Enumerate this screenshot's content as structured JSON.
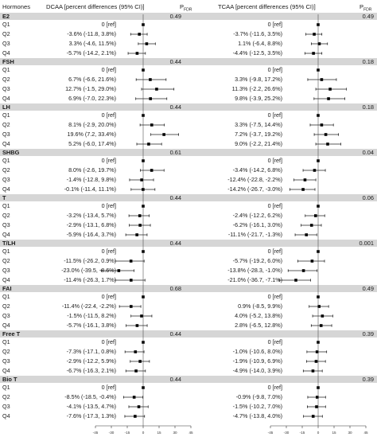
{
  "header": {
    "col_hormones": "Hormones",
    "col_dcaa": "DCAA [percent differences (95% CI)]",
    "col_p1": "P",
    "col_p1_sub": "FDR",
    "col_tcaa": "TCAA [percent differences (95% CI)]",
    "col_p2": "P",
    "col_p2_sub": "FDR"
  },
  "chart_data": {
    "type": "forest",
    "x_axis_dcaa": {
      "ticks": [
        "-45",
        "-30",
        "-15",
        "0",
        "15",
        "30",
        "45"
      ],
      "xlim": [
        -45,
        45
      ]
    },
    "x_axis_tcaa": {
      "ticks": [
        "-45",
        "-30",
        "-15",
        "0",
        "15",
        "30",
        "45"
      ],
      "xlim": [
        -45,
        45
      ]
    },
    "groups": [
      {
        "name": "E2",
        "p_dcaa": "0.49",
        "p_tcaa": "0.49",
        "rows": [
          {
            "q": "Q1",
            "dcaa_text": "0 [ref]",
            "dcaa": [
              0,
              null,
              null
            ],
            "tcaa_text": "0 [ref]",
            "tcaa": [
              0,
              null,
              null
            ]
          },
          {
            "q": "Q2",
            "dcaa_text": "-3.6% (-11.8, 3.8%)",
            "dcaa": [
              -3.6,
              -11.8,
              3.8
            ],
            "tcaa_text": "-3.7% (-11.6, 3.5%)",
            "tcaa": [
              -3.7,
              -11.6,
              3.5
            ]
          },
          {
            "q": "Q3",
            "dcaa_text": "3.3% (-4.6, 11.5%)",
            "dcaa": [
              3.3,
              -4.6,
              11.5
            ],
            "tcaa_text": "1.1% (-6.4, 8.8%)",
            "tcaa": [
              1.1,
              -6.4,
              8.8
            ]
          },
          {
            "q": "Q4",
            "dcaa_text": "-5.7% (-14.2, 2.1%)",
            "dcaa": [
              -5.7,
              -14.2,
              2.1
            ],
            "tcaa_text": "-4.4% (-12.5, 3.5%)",
            "tcaa": [
              -4.4,
              -12.5,
              3.5
            ]
          }
        ]
      },
      {
        "name": "FSH",
        "p_dcaa": "0.44",
        "p_tcaa": "0.18",
        "rows": [
          {
            "q": "Q1",
            "dcaa_text": "0 [ref]",
            "dcaa": [
              0,
              null,
              null
            ],
            "tcaa_text": "0 [ref]",
            "tcaa": [
              0,
              null,
              null
            ]
          },
          {
            "q": "Q2",
            "dcaa_text": "6.7% (-6.6, 21.6%)",
            "dcaa": [
              6.7,
              -6.6,
              21.6
            ],
            "tcaa_text": "3.3% (-9.8, 17.2%)",
            "tcaa": [
              3.3,
              -9.8,
              17.2
            ]
          },
          {
            "q": "Q3",
            "dcaa_text": "12.7% (-1.5, 29.0%)",
            "dcaa": [
              12.7,
              -1.5,
              29.0
            ],
            "tcaa_text": "11.3% (-2.2, 26.6%)",
            "tcaa": [
              11.3,
              -2.2,
              26.6
            ]
          },
          {
            "q": "Q4",
            "dcaa_text": "6.9% (-7.0, 22.3%)",
            "dcaa": [
              6.9,
              -7.0,
              22.3
            ],
            "tcaa_text": "9.8% (-3.9, 25.2%)",
            "tcaa": [
              9.8,
              -3.9,
              25.2
            ]
          }
        ]
      },
      {
        "name": "LH",
        "p_dcaa": "0.44",
        "p_tcaa": "0.18",
        "rows": [
          {
            "q": "Q1",
            "dcaa_text": "0 [ref]",
            "dcaa": [
              0,
              null,
              null
            ],
            "tcaa_text": "0 [ref]",
            "tcaa": [
              0,
              null,
              null
            ]
          },
          {
            "q": "Q2",
            "dcaa_text": "8.1% (-2.9, 20.0%)",
            "dcaa": [
              8.1,
              -2.9,
              20.0
            ],
            "tcaa_text": "3.3% (-7.5, 14.4%)",
            "tcaa": [
              3.3,
              -7.5,
              14.4
            ]
          },
          {
            "q": "Q3",
            "dcaa_text": "19.6% (7.2, 33.4%)",
            "dcaa": [
              19.6,
              7.2,
              33.4
            ],
            "tcaa_text": "7.2% (-3.7, 19.2%)",
            "tcaa": [
              7.2,
              -3.7,
              19.2
            ]
          },
          {
            "q": "Q4",
            "dcaa_text": "5.2% (-6.0, 17.4%)",
            "dcaa": [
              5.2,
              -6.0,
              17.4
            ],
            "tcaa_text": "9.0% (-2.2, 21.4%)",
            "tcaa": [
              9.0,
              -2.2,
              21.4
            ]
          }
        ]
      },
      {
        "name": "SHBG",
        "p_dcaa": "0.61",
        "p_tcaa": "0.04",
        "rows": [
          {
            "q": "Q1",
            "dcaa_text": "0 [ref]",
            "dcaa": [
              0,
              null,
              null
            ],
            "tcaa_text": "0 [ref]",
            "tcaa": [
              0,
              null,
              null
            ]
          },
          {
            "q": "Q2",
            "dcaa_text": "8.0% (-2.6, 19.7%)",
            "dcaa": [
              8.0,
              -2.6,
              19.7
            ],
            "tcaa_text": "-3.4% (-14.2, 6.8%)",
            "tcaa": [
              -3.4,
              -14.2,
              6.8
            ]
          },
          {
            "q": "Q3",
            "dcaa_text": "-1.4% (-12.8, 9.8%)",
            "dcaa": [
              -1.4,
              -12.8,
              9.8
            ],
            "tcaa_text": "-12.4% (-22.8, -2.2%)",
            "tcaa": [
              -12.4,
              -22.8,
              -2.2
            ]
          },
          {
            "q": "Q4",
            "dcaa_text": "-0.1% (-11.4, 11.1%)",
            "dcaa": [
              -0.1,
              -11.4,
              11.1
            ],
            "tcaa_text": "-14.2% (-26.7, -3.0%)",
            "tcaa": [
              -14.2,
              -26.7,
              -3.0
            ]
          }
        ]
      },
      {
        "name": "T",
        "p_dcaa": "0.44",
        "p_tcaa": "0.06",
        "rows": [
          {
            "q": "Q1",
            "dcaa_text": "0 [ref]",
            "dcaa": [
              0,
              null,
              null
            ],
            "tcaa_text": "0 [ref]",
            "tcaa": [
              0,
              null,
              null
            ]
          },
          {
            "q": "Q2",
            "dcaa_text": "-3.2% (-13.4, 5.7%)",
            "dcaa": [
              -3.2,
              -13.4,
              5.7
            ],
            "tcaa_text": "-2.4% (-12.2, 6.2%)",
            "tcaa": [
              -2.4,
              -12.2,
              6.2
            ]
          },
          {
            "q": "Q3",
            "dcaa_text": "-2.9% (-13.1, 6.8%)",
            "dcaa": [
              -2.9,
              -13.1,
              6.8
            ],
            "tcaa_text": "-6.2% (-16.1, 3.0%)",
            "tcaa": [
              -6.2,
              -16.1,
              3.0
            ]
          },
          {
            "q": "Q4",
            "dcaa_text": "-5.9% (-16.4, 3.7%)",
            "dcaa": [
              -5.9,
              -16.4,
              3.7
            ],
            "tcaa_text": "-11.1% (-21.7, -1.3%)",
            "tcaa": [
              -11.1,
              -21.7,
              -1.3
            ]
          }
        ]
      },
      {
        "name": "T/LH",
        "p_dcaa": "0.44",
        "p_tcaa": "0.001",
        "rows": [
          {
            "q": "Q1",
            "dcaa_text": "0 [ref]",
            "dcaa": [
              0,
              null,
              null
            ],
            "tcaa_text": "0 [ref]",
            "tcaa": [
              0,
              null,
              null
            ]
          },
          {
            "q": "Q2",
            "dcaa_text": "-11.5% (-26.2, 0.9%)",
            "dcaa": [
              -11.5,
              -26.2,
              0.9
            ],
            "tcaa_text": "-5.7% (-19.2, 6.0%)",
            "tcaa": [
              -5.7,
              -19.2,
              6.0
            ]
          },
          {
            "q": "Q3",
            "dcaa_text": "-23.0% (-39.5, -8.6%)",
            "dcaa": [
              -23.0,
              -39.5,
              -8.6
            ],
            "tcaa_text": "-13.8% (-28.3, -1.0%)",
            "tcaa": [
              -13.8,
              -28.3,
              -1.0
            ]
          },
          {
            "q": "Q4",
            "dcaa_text": "-11.4% (-26.3, 1.7%)",
            "dcaa": [
              -11.4,
              -26.3,
              1.7
            ],
            "tcaa_text": "-21.0% (-36.7, -7.1%)",
            "tcaa": [
              -21.0,
              -36.7,
              -7.1
            ]
          }
        ]
      },
      {
        "name": "FAI",
        "p_dcaa": "0.68",
        "p_tcaa": "0.49",
        "rows": [
          {
            "q": "Q1",
            "dcaa_text": "0 [ref]",
            "dcaa": [
              0,
              null,
              null
            ],
            "tcaa_text": "0 [ref]",
            "tcaa": [
              0,
              null,
              null
            ]
          },
          {
            "q": "Q2",
            "dcaa_text": "-11.4% (-22.4, -2.2%)",
            "dcaa": [
              -11.4,
              -22.4,
              -2.2
            ],
            "tcaa_text": "0.9% (-8.5, 9.9%)",
            "tcaa": [
              0.9,
              -8.5,
              9.9
            ]
          },
          {
            "q": "Q3",
            "dcaa_text": "-1.5% (-11.5, 8.2%)",
            "dcaa": [
              -1.5,
              -11.5,
              8.2
            ],
            "tcaa_text": "4.0% (-5.2, 13.8%)",
            "tcaa": [
              4.0,
              -5.2,
              13.8
            ]
          },
          {
            "q": "Q4",
            "dcaa_text": "-5.7% (-16.1, 3.8%)",
            "dcaa": [
              -5.7,
              -16.1,
              3.8
            ],
            "tcaa_text": "2.8% (-6.5, 12.8%)",
            "tcaa": [
              2.8,
              -6.5,
              12.8
            ]
          }
        ]
      },
      {
        "name": "Free T",
        "p_dcaa": "0.44",
        "p_tcaa": "0.39",
        "rows": [
          {
            "q": "Q1",
            "dcaa_text": "0 [ref]",
            "dcaa": [
              0,
              null,
              null
            ],
            "tcaa_text": "0 [ref]",
            "tcaa": [
              0,
              null,
              null
            ]
          },
          {
            "q": "Q2",
            "dcaa_text": "-7.3% (-17.1, 0.8%)",
            "dcaa": [
              -7.3,
              -17.1,
              0.8
            ],
            "tcaa_text": "-1.0% (-10.6, 8.0%)",
            "tcaa": [
              -1.0,
              -10.6,
              8.0
            ]
          },
          {
            "q": "Q3",
            "dcaa_text": "-2.9% (-12.2, 5.9%)",
            "dcaa": [
              -2.9,
              -12.2,
              5.9
            ],
            "tcaa_text": "-1.9% (-10.9, 6.9%)",
            "tcaa": [
              -1.9,
              -10.9,
              6.9
            ]
          },
          {
            "q": "Q4",
            "dcaa_text": "-6.7% (-16.3, 2.1%)",
            "dcaa": [
              -6.7,
              -16.3,
              2.1
            ],
            "tcaa_text": "-4.9% (-14.0, 3.9%)",
            "tcaa": [
              -4.9,
              -14.0,
              3.9
            ]
          }
        ]
      },
      {
        "name": "Bio T",
        "p_dcaa": "0.44",
        "p_tcaa": "0.39",
        "rows": [
          {
            "q": "Q1",
            "dcaa_text": "0 [ref]",
            "dcaa": [
              0,
              null,
              null
            ],
            "tcaa_text": "0 [ref]",
            "tcaa": [
              0,
              null,
              null
            ]
          },
          {
            "q": "Q2",
            "dcaa_text": "-8.5% (-18.5, -0.4%)",
            "dcaa": [
              -8.5,
              -18.5,
              -0.4
            ],
            "tcaa_text": "-0.9% (-9.8, 7.0%)",
            "tcaa": [
              -0.9,
              -9.8,
              7.0
            ]
          },
          {
            "q": "Q3",
            "dcaa_text": "-4.1% (-13.5, 4.7%)",
            "dcaa": [
              -4.1,
              -13.5,
              4.7
            ],
            "tcaa_text": "-1.5% (-10.2, 7.0%)",
            "tcaa": [
              -1.5,
              -10.2,
              7.0
            ]
          },
          {
            "q": "Q4",
            "dcaa_text": "-7.6% (-17.3, 1.3%)",
            "dcaa": [
              -7.6,
              -17.3,
              1.3
            ],
            "tcaa_text": "-4.7% (-13.8, 4.0%)",
            "tcaa": [
              -4.7,
              -13.8,
              4.0
            ]
          }
        ]
      }
    ]
  }
}
